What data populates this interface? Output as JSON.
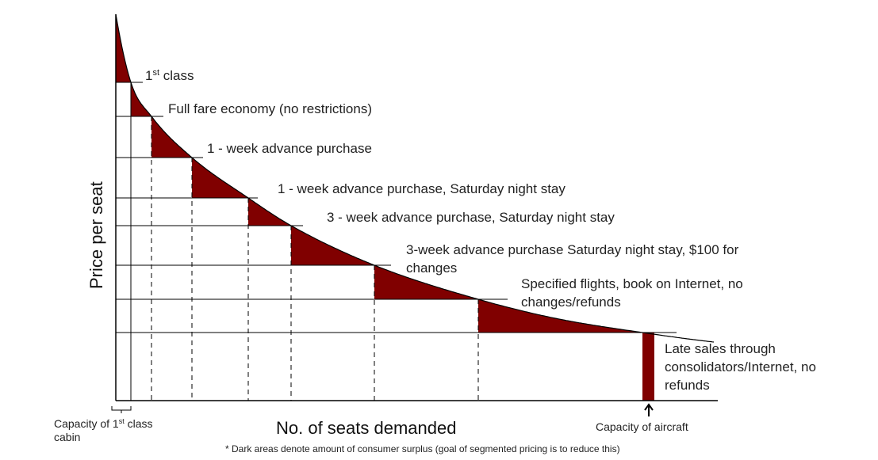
{
  "colors": {
    "surplus": "#800000",
    "line": "#000000"
  },
  "y_axis_title": "Price per seat",
  "x_axis_title": "No. of seats demanded",
  "footnote": "* Dark areas denote amount of consumer surplus (goal of segmented pricing is to reduce this)",
  "capacity_first_class": {
    "prefix": "Capacity of 1",
    "sup": "st",
    "suffix": " class",
    "line2": "cabin"
  },
  "capacity_aircraft": "Capacity of aircraft",
  "fare_labels": {
    "first_class": {
      "prefix": "1",
      "sup": "st",
      "suffix": " class"
    },
    "full_fare": "Full fare economy (no restrictions)",
    "week1": "1 - week advance purchase",
    "week1_sat": "1 - week advance purchase, Saturday night stay",
    "week3_sat": "3 - week advance purchase, Saturday night stay",
    "week3_sat_100": {
      "line1": "3-week advance purchase Saturday night stay, $100 for",
      "line2": "changes"
    },
    "specified": {
      "line1": "Specified flights, book on Internet, no",
      "line2": "changes/refunds"
    },
    "late_sales": {
      "line1": "Late sales through",
      "line2": "consolidators/Internet, no",
      "line3": "refunds"
    }
  }
}
